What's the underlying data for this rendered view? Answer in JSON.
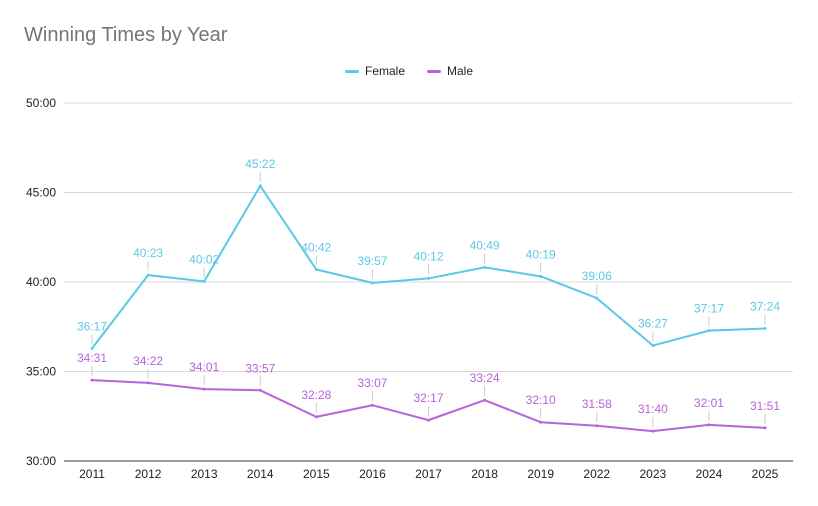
{
  "chart_data": {
    "type": "line",
    "title": "Winning Times by Year",
    "xlabel": "",
    "ylabel": "",
    "categories": [
      "2011",
      "2012",
      "2013",
      "2014",
      "2015",
      "2016",
      "2017",
      "2018",
      "2019",
      "2022",
      "2023",
      "2024",
      "2025"
    ],
    "y_ticks": [
      "30:00",
      "35:00",
      "40:00",
      "45:00",
      "50:00"
    ],
    "ylim_seconds": [
      1800,
      3000
    ],
    "grid": true,
    "legend_position": "top",
    "series": [
      {
        "name": "Female",
        "color": "#5bc8e8",
        "labels": [
          "36:17",
          "40:23",
          "40:02",
          "45:22",
          "40:42",
          "39:57",
          "40:12",
          "40:49",
          "40:19",
          "39:06",
          "36:27",
          "37:17",
          "37:24"
        ],
        "values_seconds": [
          2177,
          2423,
          2402,
          2722,
          2442,
          2397,
          2412,
          2449,
          2419,
          2346,
          2187,
          2237,
          2244
        ]
      },
      {
        "name": "Male",
        "color": "#b565d9",
        "labels": [
          "34:31",
          "34:22",
          "34:01",
          "33:57",
          "32:28",
          "33:07",
          "32:17",
          "33:24",
          "32:10",
          "31:58",
          "31:40",
          "32:01",
          "31:51"
        ],
        "values_seconds": [
          2071,
          2062,
          2041,
          2037,
          1948,
          1987,
          1937,
          2004,
          1930,
          1918,
          1900,
          1921,
          1911
        ]
      }
    ]
  }
}
